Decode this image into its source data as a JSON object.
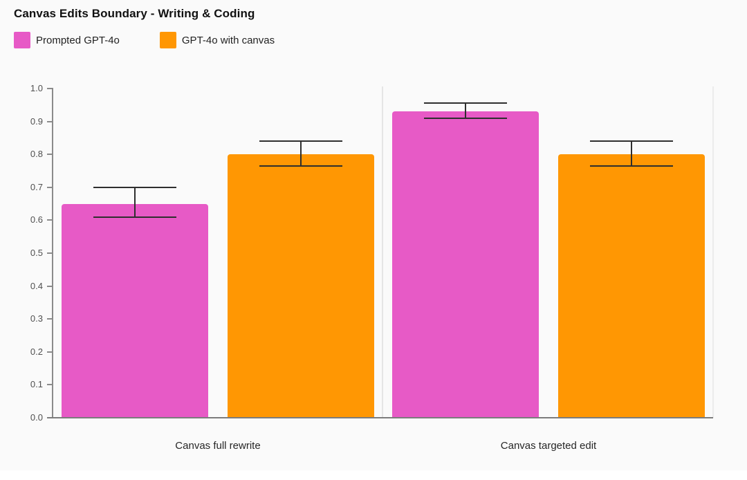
{
  "header": {
    "title": "Canvas Edits Boundary - Writing & Coding"
  },
  "legend": {
    "items": [
      {
        "label": "Prompted GPT-4o",
        "color": "#E75AC6"
      },
      {
        "label": "GPT-4o with canvas",
        "color": "#FF9703"
      }
    ]
  },
  "chart_data": {
    "type": "bar",
    "title": "Canvas Edits Boundary - Writing & Coding",
    "categories": [
      "Canvas full rewrite",
      "Canvas targeted edit"
    ],
    "series": [
      {
        "name": "Prompted GPT-4o",
        "color": "#E75AC6",
        "values": [
          0.65,
          0.93
        ],
        "error_low": [
          0.61,
          0.91
        ],
        "error_high": [
          0.7,
          0.955
        ]
      },
      {
        "name": "GPT-4o with canvas",
        "color": "#FF9703",
        "values": [
          0.8,
          0.8
        ],
        "error_low": [
          0.765,
          0.765
        ],
        "error_high": [
          0.84,
          0.84
        ]
      }
    ],
    "xlabel": "",
    "ylabel": "",
    "ylim": [
      0.0,
      1.0
    ],
    "yticks": [
      "0.0",
      "0.1",
      "0.2",
      "0.3",
      "0.4",
      "0.5",
      "0.6",
      "0.7",
      "0.8",
      "0.9",
      "1.0"
    ],
    "grid": false,
    "error_bars": true,
    "legend_position": "top-left"
  }
}
